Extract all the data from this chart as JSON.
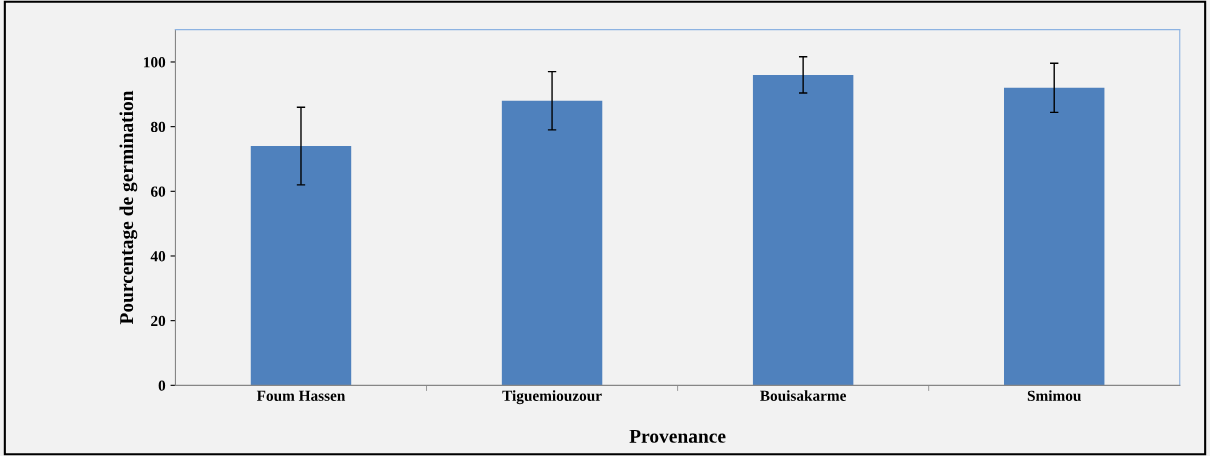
{
  "chart_data": {
    "type": "bar",
    "xlabel": "Provenance",
    "ylabel": "Pourcentage de germination",
    "categories": [
      "Foum Hassen",
      "Tiguemiouzour",
      "Bouisakarme",
      "Smimou"
    ],
    "values": [
      74,
      88,
      96,
      92
    ],
    "errors": [
      12,
      9,
      5.6,
      7.6
    ],
    "color": "#4f81bd",
    "ylim": [
      0,
      110
    ],
    "yticks": [
      0,
      20,
      40,
      60,
      80,
      100
    ],
    "grid": false,
    "legend": false
  }
}
